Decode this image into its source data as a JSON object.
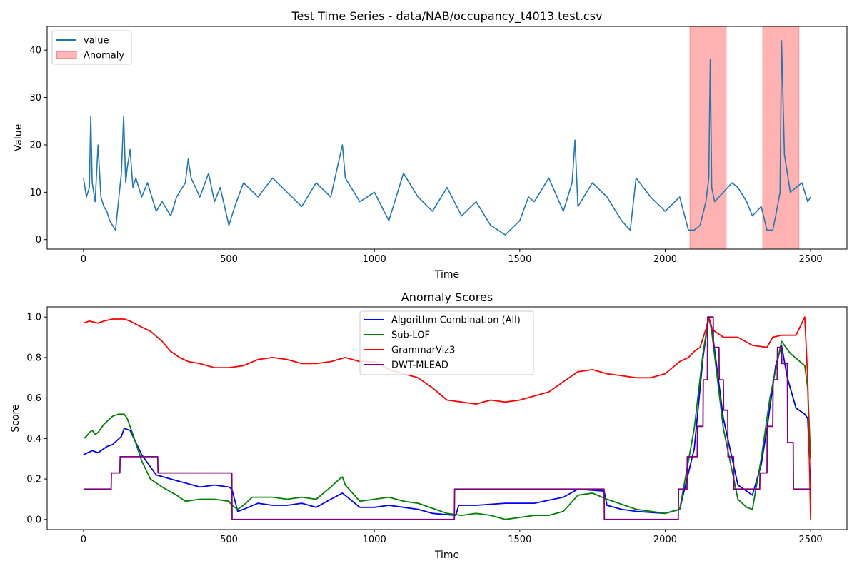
{
  "chart_data": [
    {
      "type": "line",
      "title": "Test Time Series - data/NAB/occupancy_t4013.test.csv",
      "xlabel": "Time",
      "ylabel": "Value",
      "xlim": [
        -125,
        2625
      ],
      "ylim": [
        -2,
        45
      ],
      "xticks": [
        0,
        500,
        1000,
        1500,
        2000,
        2500
      ],
      "yticks": [
        0,
        10,
        20,
        30,
        40
      ],
      "anomaly_regions": [
        [
          2085,
          2210
        ],
        [
          2335,
          2460
        ]
      ],
      "legend": [
        {
          "label": "value",
          "kind": "line",
          "color": "#1f77b4"
        },
        {
          "label": "Anomaly",
          "kind": "patch",
          "color": "#ff9999"
        }
      ],
      "series": [
        {
          "name": "value",
          "color": "#1f77b4",
          "x": [
            0,
            10,
            20,
            25,
            30,
            40,
            50,
            60,
            70,
            80,
            90,
            100,
            110,
            120,
            130,
            138,
            145,
            150,
            160,
            170,
            180,
            200,
            220,
            250,
            270,
            300,
            320,
            350,
            360,
            370,
            400,
            430,
            450,
            470,
            500,
            520,
            550,
            600,
            650,
            700,
            750,
            800,
            850,
            890,
            900,
            950,
            1000,
            1050,
            1100,
            1150,
            1200,
            1250,
            1300,
            1350,
            1400,
            1450,
            1500,
            1530,
            1550,
            1600,
            1650,
            1680,
            1690,
            1700,
            1750,
            1800,
            1850,
            1880,
            1900,
            1950,
            2000,
            2050,
            2080,
            2100,
            2120,
            2140,
            2150,
            2155,
            2160,
            2170,
            2200,
            2230,
            2250,
            2280,
            2300,
            2330,
            2350,
            2370,
            2380,
            2395,
            2400,
            2410,
            2430,
            2450,
            2470,
            2490,
            2500
          ],
          "y": [
            13,
            9,
            11,
            26,
            12,
            8,
            20,
            9,
            7,
            6,
            4,
            3,
            2,
            8,
            14,
            26,
            12,
            15,
            19,
            11,
            13,
            9,
            12,
            6,
            8,
            5,
            9,
            12,
            17,
            13,
            9,
            14,
            8,
            11,
            3,
            7,
            12,
            9,
            13,
            10,
            7,
            12,
            9,
            20,
            13,
            8,
            10,
            4,
            14,
            9,
            6,
            11,
            5,
            8,
            3,
            1,
            4,
            9,
            8,
            13,
            6,
            12,
            21,
            7,
            12,
            9,
            4,
            2,
            13,
            9,
            6,
            9,
            2,
            2,
            3,
            8,
            13,
            38,
            11,
            8,
            10,
            12,
            11,
            8,
            5,
            7,
            2,
            2,
            5,
            10,
            42,
            18,
            10,
            11,
            12,
            8,
            9
          ]
        }
      ]
    },
    {
      "type": "line",
      "title": "Anomaly Scores",
      "xlabel": "Time",
      "ylabel": "Score",
      "xlim": [
        -125,
        2625
      ],
      "ylim": [
        -0.05,
        1.05
      ],
      "xticks": [
        0,
        500,
        1000,
        1500,
        2000,
        2500
      ],
      "yticks": [
        0.0,
        0.2,
        0.4,
        0.6,
        0.8,
        1.0
      ],
      "legend_position": "upper center",
      "series": [
        {
          "name": "Algorithm Combination (All)",
          "color": "#0000ff",
          "x": [
            0,
            30,
            50,
            80,
            100,
            130,
            140,
            160,
            200,
            250,
            300,
            400,
            450,
            500,
            510,
            530,
            550,
            600,
            650,
            700,
            750,
            800,
            850,
            890,
            950,
            1000,
            1050,
            1100,
            1150,
            1200,
            1280,
            1290,
            1350,
            1450,
            1500,
            1550,
            1650,
            1700,
            1790,
            1800,
            1850,
            1900,
            2000,
            2050,
            2100,
            2130,
            2150,
            2160,
            2200,
            2250,
            2300,
            2330,
            2350,
            2380,
            2400,
            2420,
            2450,
            2480,
            2490,
            2500
          ],
          "y": [
            0.32,
            0.34,
            0.33,
            0.36,
            0.37,
            0.41,
            0.45,
            0.44,
            0.32,
            0.22,
            0.2,
            0.16,
            0.17,
            0.16,
            0.15,
            0.04,
            0.05,
            0.08,
            0.07,
            0.07,
            0.08,
            0.06,
            0.1,
            0.13,
            0.06,
            0.06,
            0.07,
            0.06,
            0.05,
            0.03,
            0.02,
            0.07,
            0.07,
            0.08,
            0.08,
            0.08,
            0.11,
            0.15,
            0.14,
            0.07,
            0.05,
            0.04,
            0.03,
            0.05,
            0.35,
            0.8,
            1.0,
            0.95,
            0.5,
            0.17,
            0.12,
            0.27,
            0.45,
            0.76,
            0.86,
            0.7,
            0.55,
            0.52,
            0.5,
            0.16
          ]
        },
        {
          "name": "Sub-LOF",
          "color": "#008000",
          "x": [
            0,
            10,
            20,
            30,
            40,
            50,
            70,
            100,
            120,
            140,
            150,
            170,
            200,
            230,
            270,
            320,
            350,
            400,
            450,
            500,
            510,
            530,
            550,
            580,
            650,
            700,
            750,
            800,
            850,
            880,
            890,
            900,
            950,
            1000,
            1050,
            1100,
            1150,
            1250,
            1300,
            1350,
            1400,
            1450,
            1500,
            1550,
            1600,
            1650,
            1700,
            1750,
            1800,
            1900,
            2000,
            2050,
            2100,
            2130,
            2150,
            2160,
            2200,
            2250,
            2280,
            2300,
            2330,
            2360,
            2400,
            2430,
            2480,
            2490,
            2500
          ],
          "y": [
            0.4,
            0.41,
            0.43,
            0.44,
            0.42,
            0.43,
            0.47,
            0.51,
            0.52,
            0.52,
            0.5,
            0.42,
            0.29,
            0.2,
            0.16,
            0.12,
            0.09,
            0.1,
            0.1,
            0.09,
            0.07,
            0.05,
            0.07,
            0.11,
            0.11,
            0.1,
            0.11,
            0.1,
            0.16,
            0.2,
            0.21,
            0.17,
            0.09,
            0.1,
            0.11,
            0.09,
            0.08,
            0.03,
            0.02,
            0.03,
            0.02,
            0.0,
            0.01,
            0.02,
            0.02,
            0.04,
            0.12,
            0.13,
            0.1,
            0.05,
            0.03,
            0.05,
            0.45,
            0.82,
            1.0,
            0.93,
            0.45,
            0.1,
            0.06,
            0.05,
            0.3,
            0.6,
            0.88,
            0.82,
            0.76,
            0.65,
            0.3
          ]
        },
        {
          "name": "GrammarViz3",
          "color": "#ff0000",
          "x": [
            0,
            20,
            50,
            70,
            100,
            140,
            160,
            200,
            230,
            270,
            300,
            330,
            360,
            400,
            450,
            500,
            550,
            600,
            650,
            700,
            750,
            800,
            850,
            900,
            950,
            1000,
            1050,
            1100,
            1150,
            1200,
            1250,
            1300,
            1350,
            1400,
            1450,
            1500,
            1550,
            1600,
            1650,
            1700,
            1750,
            1800,
            1850,
            1900,
            1950,
            2000,
            2050,
            2080,
            2100,
            2120,
            2140,
            2150,
            2160,
            2200,
            2250,
            2300,
            2350,
            2370,
            2400,
            2450,
            2480,
            2490,
            2500
          ],
          "y": [
            0.97,
            0.98,
            0.97,
            0.98,
            0.99,
            0.99,
            0.98,
            0.95,
            0.93,
            0.88,
            0.83,
            0.8,
            0.78,
            0.77,
            0.75,
            0.75,
            0.76,
            0.79,
            0.8,
            0.79,
            0.77,
            0.77,
            0.78,
            0.8,
            0.78,
            0.78,
            0.74,
            0.72,
            0.7,
            0.65,
            0.59,
            0.58,
            0.57,
            0.59,
            0.58,
            0.59,
            0.61,
            0.63,
            0.68,
            0.73,
            0.74,
            0.72,
            0.71,
            0.7,
            0.7,
            0.72,
            0.78,
            0.8,
            0.83,
            0.85,
            0.94,
            1.0,
            0.94,
            0.9,
            0.9,
            0.86,
            0.85,
            0.9,
            0.91,
            0.91,
            1.0,
            0.7,
            0.0
          ]
        },
        {
          "name": "DWT-MLEAD",
          "color": "#800080",
          "x": [
            0,
            95,
            96,
            125,
            126,
            255,
            256,
            510,
            511,
            1275,
            1276,
            1790,
            1791,
            2045,
            2046,
            2075,
            2076,
            2110,
            2111,
            2130,
            2131,
            2145,
            2146,
            2165,
            2166,
            2185,
            2186,
            2200,
            2201,
            2215,
            2216,
            2235,
            2236,
            2270,
            2271,
            2325,
            2326,
            2350,
            2351,
            2370,
            2371,
            2385,
            2386,
            2400,
            2401,
            2420,
            2421,
            2440,
            2441,
            2500
          ],
          "y": [
            0.15,
            0.15,
            0.23,
            0.23,
            0.31,
            0.31,
            0.23,
            0.23,
            0.0,
            0.0,
            0.15,
            0.15,
            0.0,
            0.0,
            0.15,
            0.15,
            0.31,
            0.31,
            0.46,
            0.46,
            0.69,
            0.69,
            1.0,
            1.0,
            0.85,
            0.85,
            0.69,
            0.69,
            0.54,
            0.54,
            0.31,
            0.31,
            0.15,
            0.15,
            0.15,
            0.15,
            0.23,
            0.23,
            0.46,
            0.46,
            0.69,
            0.69,
            0.85,
            0.85,
            0.77,
            0.77,
            0.38,
            0.38,
            0.15,
            0.15
          ]
        }
      ]
    }
  ]
}
